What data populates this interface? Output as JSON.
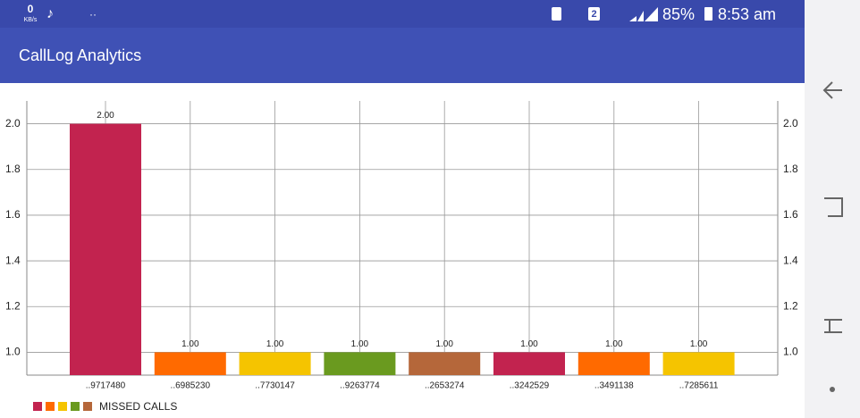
{
  "status_bar": {
    "net_speed": "0",
    "net_unit": "KB/s",
    "sim": "2",
    "battery": "85%",
    "time": "8:53 am"
  },
  "app_bar": {
    "title": "CallLog Analytics"
  },
  "chart_data": {
    "type": "bar",
    "categories": [
      "..9717480",
      "..6985230",
      "..7730147",
      "..9263774",
      "..2653274",
      "..3242529",
      "..3491138",
      "..7285611"
    ],
    "series": [
      {
        "name": "MISSED CALLS",
        "colors": [
          "#c2234f",
          "#ff6a00",
          "#f5c400",
          "#6a9a1f",
          "#b5673a"
        ],
        "values": [
          2,
          1,
          1,
          1,
          1,
          1,
          1,
          1
        ],
        "value_labels": [
          "2.00",
          "1.00",
          "1.00",
          "1.00",
          "1.00",
          "1.00",
          "1.00",
          "1.00"
        ]
      }
    ],
    "ylim": [
      0.9,
      2.1
    ],
    "yticks": [
      {
        "value": 1,
        "label": "1.0"
      },
      {
        "value": 1.2,
        "label": "1.2"
      },
      {
        "value": 1.4,
        "label": "1.4"
      },
      {
        "value": 1.6,
        "label": "1.6"
      },
      {
        "value": 1.8,
        "label": "1.8"
      },
      {
        "value": 2,
        "label": "2.0"
      }
    ],
    "y2lim": [
      0.9,
      2.1
    ],
    "y2ticks": [
      {
        "value": 1,
        "label": "1.0"
      },
      {
        "value": 1.2,
        "label": "1.2"
      },
      {
        "value": 1.4,
        "label": "1.4"
      },
      {
        "value": 1.6,
        "label": "1.6"
      },
      {
        "value": 1.8,
        "label": "1.8"
      },
      {
        "value": 2,
        "label": "2.0"
      }
    ],
    "grid": true
  }
}
